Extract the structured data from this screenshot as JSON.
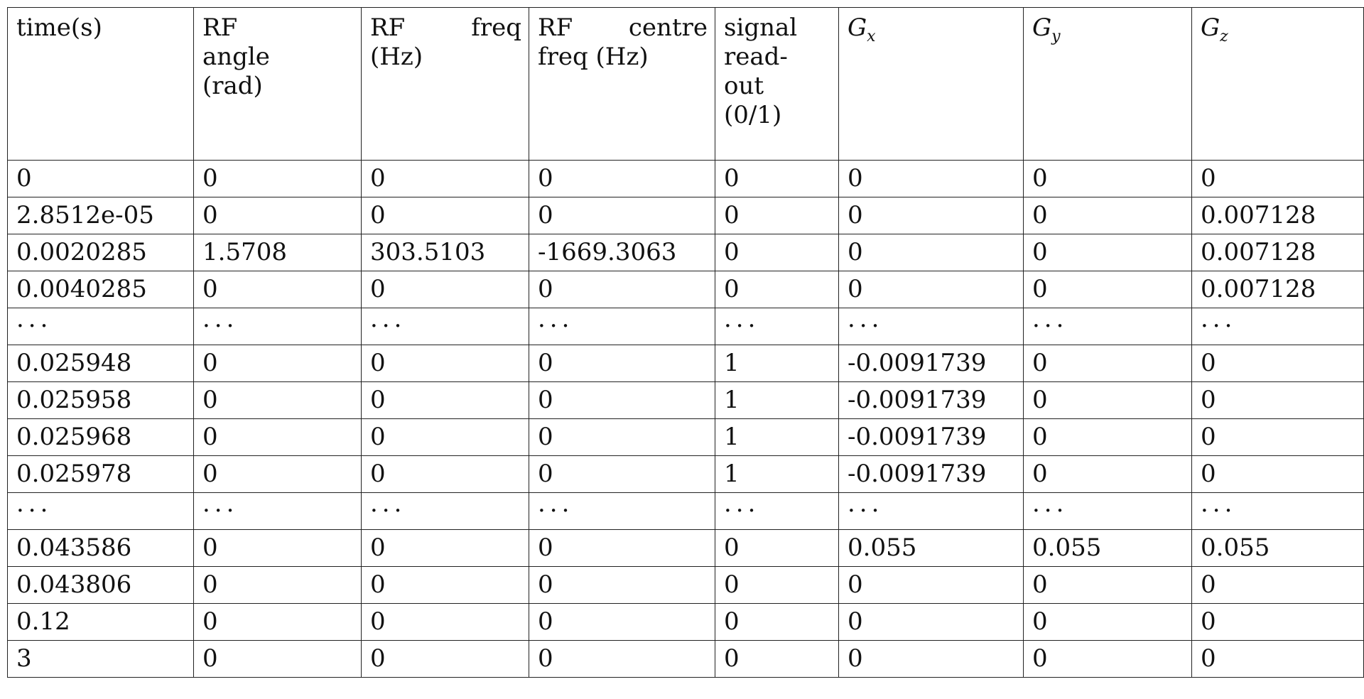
{
  "table": {
    "headers": [
      {
        "lines": [
          "time(s)"
        ]
      },
      {
        "lines": [
          "RF",
          "angle",
          "(rad)"
        ]
      },
      {
        "lines": [
          "RF freq",
          "(Hz)"
        ]
      },
      {
        "lines": [
          "RF centre",
          "freq (Hz)"
        ]
      },
      {
        "lines": [
          "signal",
          "read-",
          "out",
          "(0/1)"
        ]
      },
      {
        "symbol": "G",
        "sub": "x"
      },
      {
        "symbol": "G",
        "sub": "y"
      },
      {
        "symbol": "G",
        "sub": "z"
      }
    ],
    "rows": [
      [
        "0",
        "0",
        "0",
        "0",
        "0",
        "0",
        "0",
        "0"
      ],
      [
        "2.8512e-05",
        "0",
        "0",
        "0",
        "0",
        "0",
        "0",
        "0.007128"
      ],
      [
        "0.0020285",
        "1.5708",
        "303.5103",
        "-1669.3063",
        "0",
        "0",
        "0",
        "0.007128"
      ],
      [
        "0.0040285",
        "0",
        "0",
        "0",
        "0",
        "0",
        "0",
        "0.007128"
      ],
      [
        "...",
        "...",
        "...",
        "...",
        "...",
        "...",
        "...",
        "..."
      ],
      [
        "0.025948",
        "0",
        "0",
        "0",
        "1",
        "-0.0091739",
        "0",
        "0"
      ],
      [
        "0.025958",
        "0",
        "0",
        "0",
        "1",
        "-0.0091739",
        "0",
        "0"
      ],
      [
        "0.025968",
        "0",
        "0",
        "0",
        "1",
        "-0.0091739",
        "0",
        "0"
      ],
      [
        "0.025978",
        "0",
        "0",
        "0",
        "1",
        "-0.0091739",
        "0",
        "0"
      ],
      [
        "...",
        "...",
        "...",
        "...",
        "...",
        "...",
        "...",
        "..."
      ],
      [
        "0.043586",
        "0",
        "0",
        "0",
        "0",
        "0.055",
        "0.055",
        "0.055"
      ],
      [
        "0.043806",
        "0",
        "0",
        "0",
        "0",
        "0",
        "0",
        "0"
      ],
      [
        "0.12",
        "0",
        "0",
        "0",
        "0",
        "0",
        "0",
        "0"
      ],
      [
        "3",
        "0",
        "0",
        "0",
        "0",
        "0",
        "0",
        "0"
      ]
    ]
  }
}
